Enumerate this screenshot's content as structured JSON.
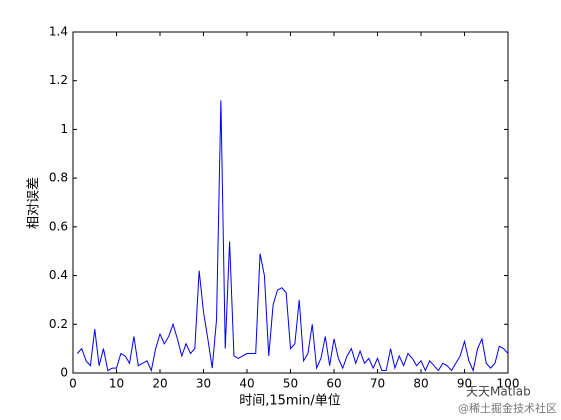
{
  "chart_data": {
    "type": "line",
    "xlabel": "时间,15min/单位",
    "ylabel": "相对误差",
    "x": [
      1,
      2,
      3,
      4,
      5,
      6,
      7,
      8,
      9,
      10,
      11,
      12,
      13,
      14,
      15,
      16,
      17,
      18,
      19,
      20,
      21,
      22,
      23,
      24,
      25,
      26,
      27,
      28,
      29,
      30,
      31,
      32,
      33,
      34,
      35,
      36,
      37,
      38,
      39,
      40,
      41,
      42,
      43,
      44,
      45,
      46,
      47,
      48,
      49,
      50,
      51,
      52,
      53,
      54,
      55,
      56,
      57,
      58,
      59,
      60,
      61,
      62,
      63,
      64,
      65,
      66,
      67,
      68,
      69,
      70,
      71,
      72,
      73,
      74,
      75,
      76,
      77,
      78,
      79,
      80,
      81,
      82,
      83,
      84,
      85,
      86,
      87,
      88,
      89,
      90,
      91,
      92,
      93,
      94,
      95,
      96,
      97,
      98,
      99,
      100
    ],
    "values": [
      0.08,
      0.1,
      0.05,
      0.03,
      0.18,
      0.03,
      0.1,
      0.01,
      0.02,
      0.02,
      0.08,
      0.07,
      0.04,
      0.15,
      0.03,
      0.04,
      0.05,
      0.01,
      0.1,
      0.16,
      0.12,
      0.15,
      0.2,
      0.14,
      0.07,
      0.12,
      0.08,
      0.1,
      0.42,
      0.25,
      0.14,
      0.02,
      0.22,
      1.12,
      0.1,
      0.54,
      0.07,
      0.06,
      0.07,
      0.08,
      0.08,
      0.08,
      0.49,
      0.4,
      0.07,
      0.28,
      0.34,
      0.35,
      0.33,
      0.1,
      0.12,
      0.3,
      0.05,
      0.08,
      0.2,
      0.02,
      0.06,
      0.15,
      0.03,
      0.14,
      0.06,
      0.02,
      0.07,
      0.1,
      0.04,
      0.09,
      0.04,
      0.06,
      0.02,
      0.06,
      0.01,
      0.01,
      0.1,
      0.02,
      0.07,
      0.03,
      0.08,
      0.06,
      0.03,
      0.05,
      0.01,
      0.05,
      0.03,
      0.01,
      0.04,
      0.03,
      0.01,
      0.04,
      0.07,
      0.13,
      0.05,
      0.01,
      0.1,
      0.14,
      0.04,
      0.02,
      0.04,
      0.11,
      0.1,
      0.08
    ],
    "color": "#0000ff",
    "xlim": [
      0,
      100
    ],
    "xticks": [
      0,
      10,
      20,
      30,
      40,
      50,
      60,
      70,
      80,
      90,
      100
    ],
    "ylim": [
      0,
      1.4
    ],
    "yticks": [
      0,
      0.2,
      0.4,
      0.6,
      0.8,
      1,
      1.2,
      1.4
    ],
    "grid": false,
    "watermark": [
      "天天Matlab",
      "@稀土掘金技术社区"
    ]
  }
}
